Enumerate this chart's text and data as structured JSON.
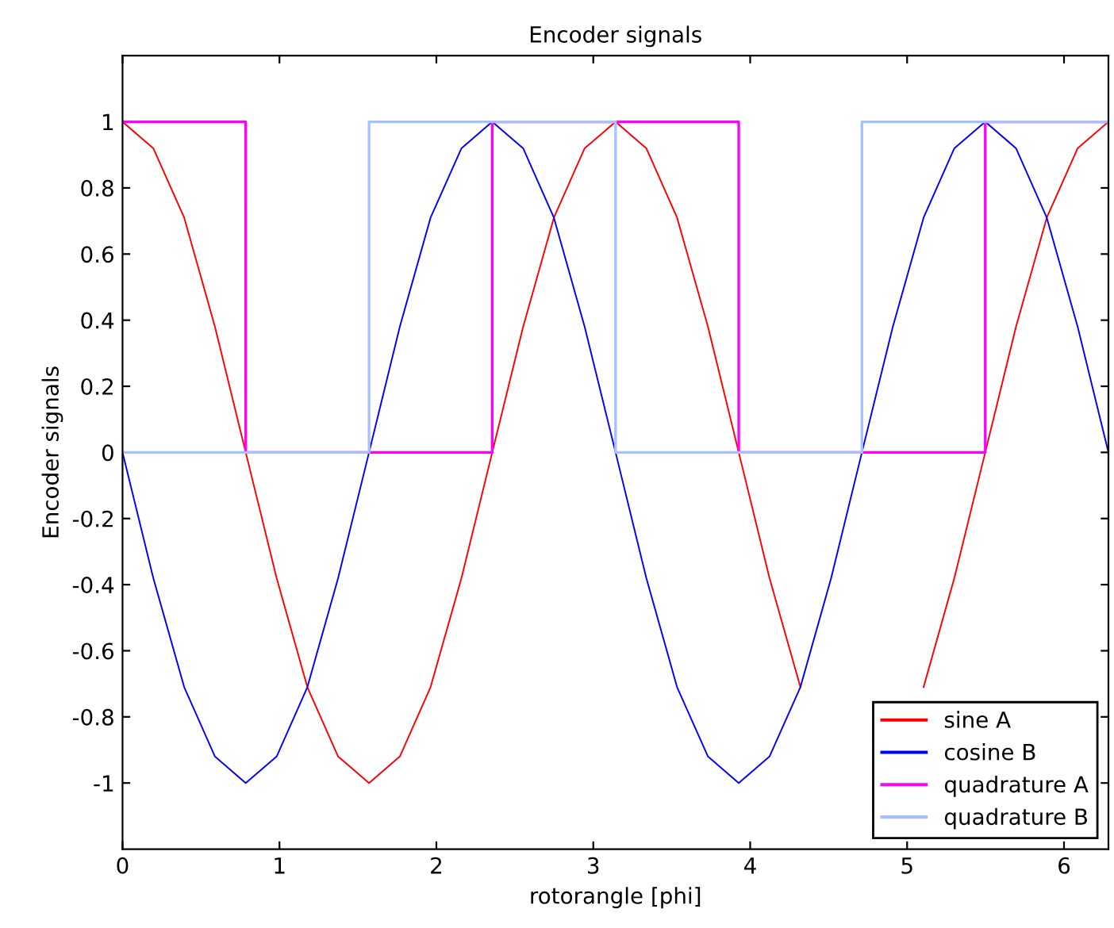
{
  "chart_data": {
    "type": "line",
    "title": "Encoder signals",
    "xlabel": "rotorangle [phi]",
    "ylabel": "Encoder signals",
    "x": [
      0,
      0.196,
      0.393,
      0.589,
      0.785,
      0.982,
      1.178,
      1.374,
      1.571,
      1.767,
      1.963,
      2.16,
      2.356,
      2.553,
      2.749,
      2.945,
      3.142,
      3.338,
      3.534,
      3.731,
      3.927,
      4.123,
      4.32,
      4.516,
      4.712,
      4.909,
      5.105,
      5.301,
      5.498,
      5.694,
      5.89,
      6.087,
      6.283
    ],
    "series": [
      {
        "name": "sine A",
        "color": "#ff0000",
        "values": [
          1,
          0.92,
          0.71,
          0.38,
          0,
          -0.38,
          -0.71,
          -0.92,
          -1,
          -0.92,
          -0.71,
          -0.38,
          0,
          0.38,
          0.71,
          0.92,
          1,
          0.92,
          0.71,
          0.38,
          0,
          -0.38,
          -0.71,
          null,
          null,
          null,
          -0.71,
          -0.38,
          0,
          0.38,
          0.71,
          0.92,
          1
        ]
      },
      {
        "name": "cosine B",
        "color": "#0000ff",
        "values": [
          0,
          -0.38,
          -0.71,
          -0.92,
          -1,
          -0.92,
          -0.71,
          -0.38,
          0,
          0.38,
          0.71,
          0.92,
          1,
          0.92,
          0.71,
          0.38,
          0,
          -0.38,
          -0.71,
          -0.92,
          -1,
          -0.92,
          -0.71,
          -0.38,
          0,
          0.38,
          0.71,
          0.92,
          1,
          0.92,
          0.71,
          0.38,
          0
        ]
      },
      {
        "name": "quadrature A",
        "color": "#ff00ff",
        "type": "step",
        "x": [
          0,
          0.785,
          2.356,
          3.927,
          5.498,
          6.283
        ],
        "values": [
          1,
          0,
          1,
          0,
          1,
          1
        ]
      },
      {
        "name": "quadrature B",
        "color": "#a8c0ff",
        "type": "step",
        "x": [
          0,
          1.571,
          3.142,
          4.712,
          6.283
        ],
        "values": [
          0,
          1,
          0,
          1,
          1
        ]
      }
    ],
    "xlim": [
      0,
      6.283
    ],
    "ylim": [
      -1.2,
      1.2
    ],
    "xticks": [
      0,
      1,
      2,
      3,
      4,
      5,
      6
    ],
    "yticks": [
      -1,
      -0.8,
      -0.6,
      -0.4,
      -0.2,
      0,
      0.2,
      0.4,
      0.6,
      0.8,
      1
    ],
    "grid": false,
    "legend": "bottom right",
    "marker": "none",
    "line_style": "solid"
  }
}
